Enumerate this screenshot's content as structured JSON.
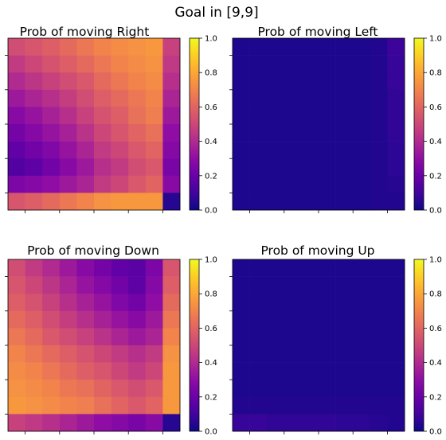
{
  "suptitle": "Goal in [9,9]",
  "colormap": "plasma",
  "colorbar": {
    "ticks": [
      0.0,
      0.2,
      0.4,
      0.6,
      0.8,
      1.0
    ],
    "tick_labels": [
      "0.0",
      "0.2",
      "0.4",
      "0.6",
      "0.8",
      "1.0"
    ],
    "range": [
      0,
      1
    ]
  },
  "chart_data": [
    {
      "type": "heatmap",
      "title": "Prob of moving Right",
      "vmin": 0,
      "vmax": 1,
      "values": [
        [
          0.52,
          0.55,
          0.58,
          0.62,
          0.66,
          0.7,
          0.72,
          0.74,
          0.76,
          0.48
        ],
        [
          0.46,
          0.5,
          0.54,
          0.58,
          0.62,
          0.66,
          0.7,
          0.72,
          0.74,
          0.45
        ],
        [
          0.4,
          0.44,
          0.48,
          0.52,
          0.56,
          0.62,
          0.66,
          0.7,
          0.72,
          0.42
        ],
        [
          0.34,
          0.38,
          0.42,
          0.47,
          0.52,
          0.58,
          0.62,
          0.66,
          0.7,
          0.38
        ],
        [
          0.28,
          0.32,
          0.37,
          0.42,
          0.48,
          0.54,
          0.58,
          0.64,
          0.68,
          0.34
        ],
        [
          0.23,
          0.27,
          0.32,
          0.37,
          0.43,
          0.5,
          0.55,
          0.6,
          0.64,
          0.3
        ],
        [
          0.18,
          0.22,
          0.26,
          0.32,
          0.38,
          0.46,
          0.5,
          0.56,
          0.6,
          0.27
        ],
        [
          0.14,
          0.17,
          0.22,
          0.28,
          0.34,
          0.42,
          0.46,
          0.52,
          0.56,
          0.24
        ],
        [
          0.25,
          0.27,
          0.3,
          0.34,
          0.38,
          0.46,
          0.5,
          0.56,
          0.6,
          0.28
        ],
        [
          0.55,
          0.58,
          0.62,
          0.66,
          0.7,
          0.74,
          0.76,
          0.76,
          0.76,
          0.05
        ]
      ]
    },
    {
      "type": "heatmap",
      "title": "Prob of moving Left",
      "vmin": 0,
      "vmax": 1,
      "values": [
        [
          0.03,
          0.03,
          0.03,
          0.03,
          0.03,
          0.03,
          0.03,
          0.03,
          0.04,
          0.09
        ],
        [
          0.03,
          0.03,
          0.03,
          0.03,
          0.03,
          0.03,
          0.03,
          0.03,
          0.04,
          0.08
        ],
        [
          0.03,
          0.03,
          0.03,
          0.03,
          0.03,
          0.03,
          0.03,
          0.03,
          0.04,
          0.08
        ],
        [
          0.03,
          0.03,
          0.03,
          0.03,
          0.03,
          0.03,
          0.03,
          0.03,
          0.04,
          0.07
        ],
        [
          0.03,
          0.03,
          0.03,
          0.03,
          0.03,
          0.03,
          0.03,
          0.03,
          0.04,
          0.07
        ],
        [
          0.03,
          0.03,
          0.03,
          0.03,
          0.03,
          0.03,
          0.03,
          0.03,
          0.04,
          0.07
        ],
        [
          0.03,
          0.03,
          0.03,
          0.03,
          0.03,
          0.03,
          0.03,
          0.03,
          0.04,
          0.06
        ],
        [
          0.03,
          0.03,
          0.03,
          0.03,
          0.03,
          0.03,
          0.03,
          0.03,
          0.04,
          0.06
        ],
        [
          0.03,
          0.03,
          0.03,
          0.03,
          0.03,
          0.03,
          0.03,
          0.03,
          0.04,
          0.05
        ],
        [
          0.03,
          0.03,
          0.03,
          0.03,
          0.03,
          0.03,
          0.03,
          0.03,
          0.04,
          0.04
        ]
      ]
    },
    {
      "type": "heatmap",
      "title": "Prob of moving Down",
      "vmin": 0,
      "vmax": 1,
      "values": [
        [
          0.52,
          0.46,
          0.4,
          0.34,
          0.28,
          0.23,
          0.18,
          0.16,
          0.25,
          0.55
        ],
        [
          0.55,
          0.5,
          0.44,
          0.38,
          0.32,
          0.27,
          0.22,
          0.17,
          0.27,
          0.58
        ],
        [
          0.58,
          0.54,
          0.48,
          0.42,
          0.37,
          0.32,
          0.26,
          0.22,
          0.3,
          0.62
        ],
        [
          0.62,
          0.58,
          0.52,
          0.47,
          0.42,
          0.37,
          0.32,
          0.28,
          0.34,
          0.66
        ],
        [
          0.66,
          0.62,
          0.56,
          0.52,
          0.48,
          0.43,
          0.38,
          0.34,
          0.38,
          0.7
        ],
        [
          0.7,
          0.66,
          0.62,
          0.58,
          0.54,
          0.5,
          0.46,
          0.42,
          0.46,
          0.74
        ],
        [
          0.72,
          0.7,
          0.66,
          0.62,
          0.58,
          0.55,
          0.5,
          0.46,
          0.5,
          0.76
        ],
        [
          0.74,
          0.72,
          0.7,
          0.66,
          0.64,
          0.6,
          0.56,
          0.52,
          0.56,
          0.76
        ],
        [
          0.76,
          0.74,
          0.72,
          0.7,
          0.68,
          0.64,
          0.6,
          0.56,
          0.6,
          0.76
        ],
        [
          0.48,
          0.45,
          0.42,
          0.38,
          0.34,
          0.3,
          0.27,
          0.24,
          0.28,
          0.05
        ]
      ]
    },
    {
      "type": "heatmap",
      "title": "Prob of moving Up",
      "vmin": 0,
      "vmax": 1,
      "values": [
        [
          0.03,
          0.03,
          0.03,
          0.03,
          0.03,
          0.03,
          0.03,
          0.03,
          0.03,
          0.03
        ],
        [
          0.03,
          0.03,
          0.03,
          0.03,
          0.03,
          0.03,
          0.03,
          0.03,
          0.03,
          0.03
        ],
        [
          0.03,
          0.03,
          0.03,
          0.03,
          0.03,
          0.03,
          0.03,
          0.03,
          0.03,
          0.03
        ],
        [
          0.03,
          0.03,
          0.03,
          0.03,
          0.03,
          0.03,
          0.03,
          0.03,
          0.03,
          0.03
        ],
        [
          0.03,
          0.03,
          0.03,
          0.03,
          0.03,
          0.03,
          0.03,
          0.03,
          0.03,
          0.03
        ],
        [
          0.03,
          0.03,
          0.03,
          0.03,
          0.03,
          0.03,
          0.03,
          0.03,
          0.03,
          0.03
        ],
        [
          0.03,
          0.03,
          0.03,
          0.03,
          0.03,
          0.03,
          0.03,
          0.03,
          0.03,
          0.03
        ],
        [
          0.03,
          0.03,
          0.03,
          0.03,
          0.03,
          0.03,
          0.03,
          0.03,
          0.03,
          0.03
        ],
        [
          0.04,
          0.04,
          0.04,
          0.04,
          0.04,
          0.04,
          0.04,
          0.04,
          0.04,
          0.04
        ],
        [
          0.08,
          0.08,
          0.07,
          0.07,
          0.07,
          0.07,
          0.06,
          0.06,
          0.05,
          0.04
        ]
      ]
    }
  ]
}
